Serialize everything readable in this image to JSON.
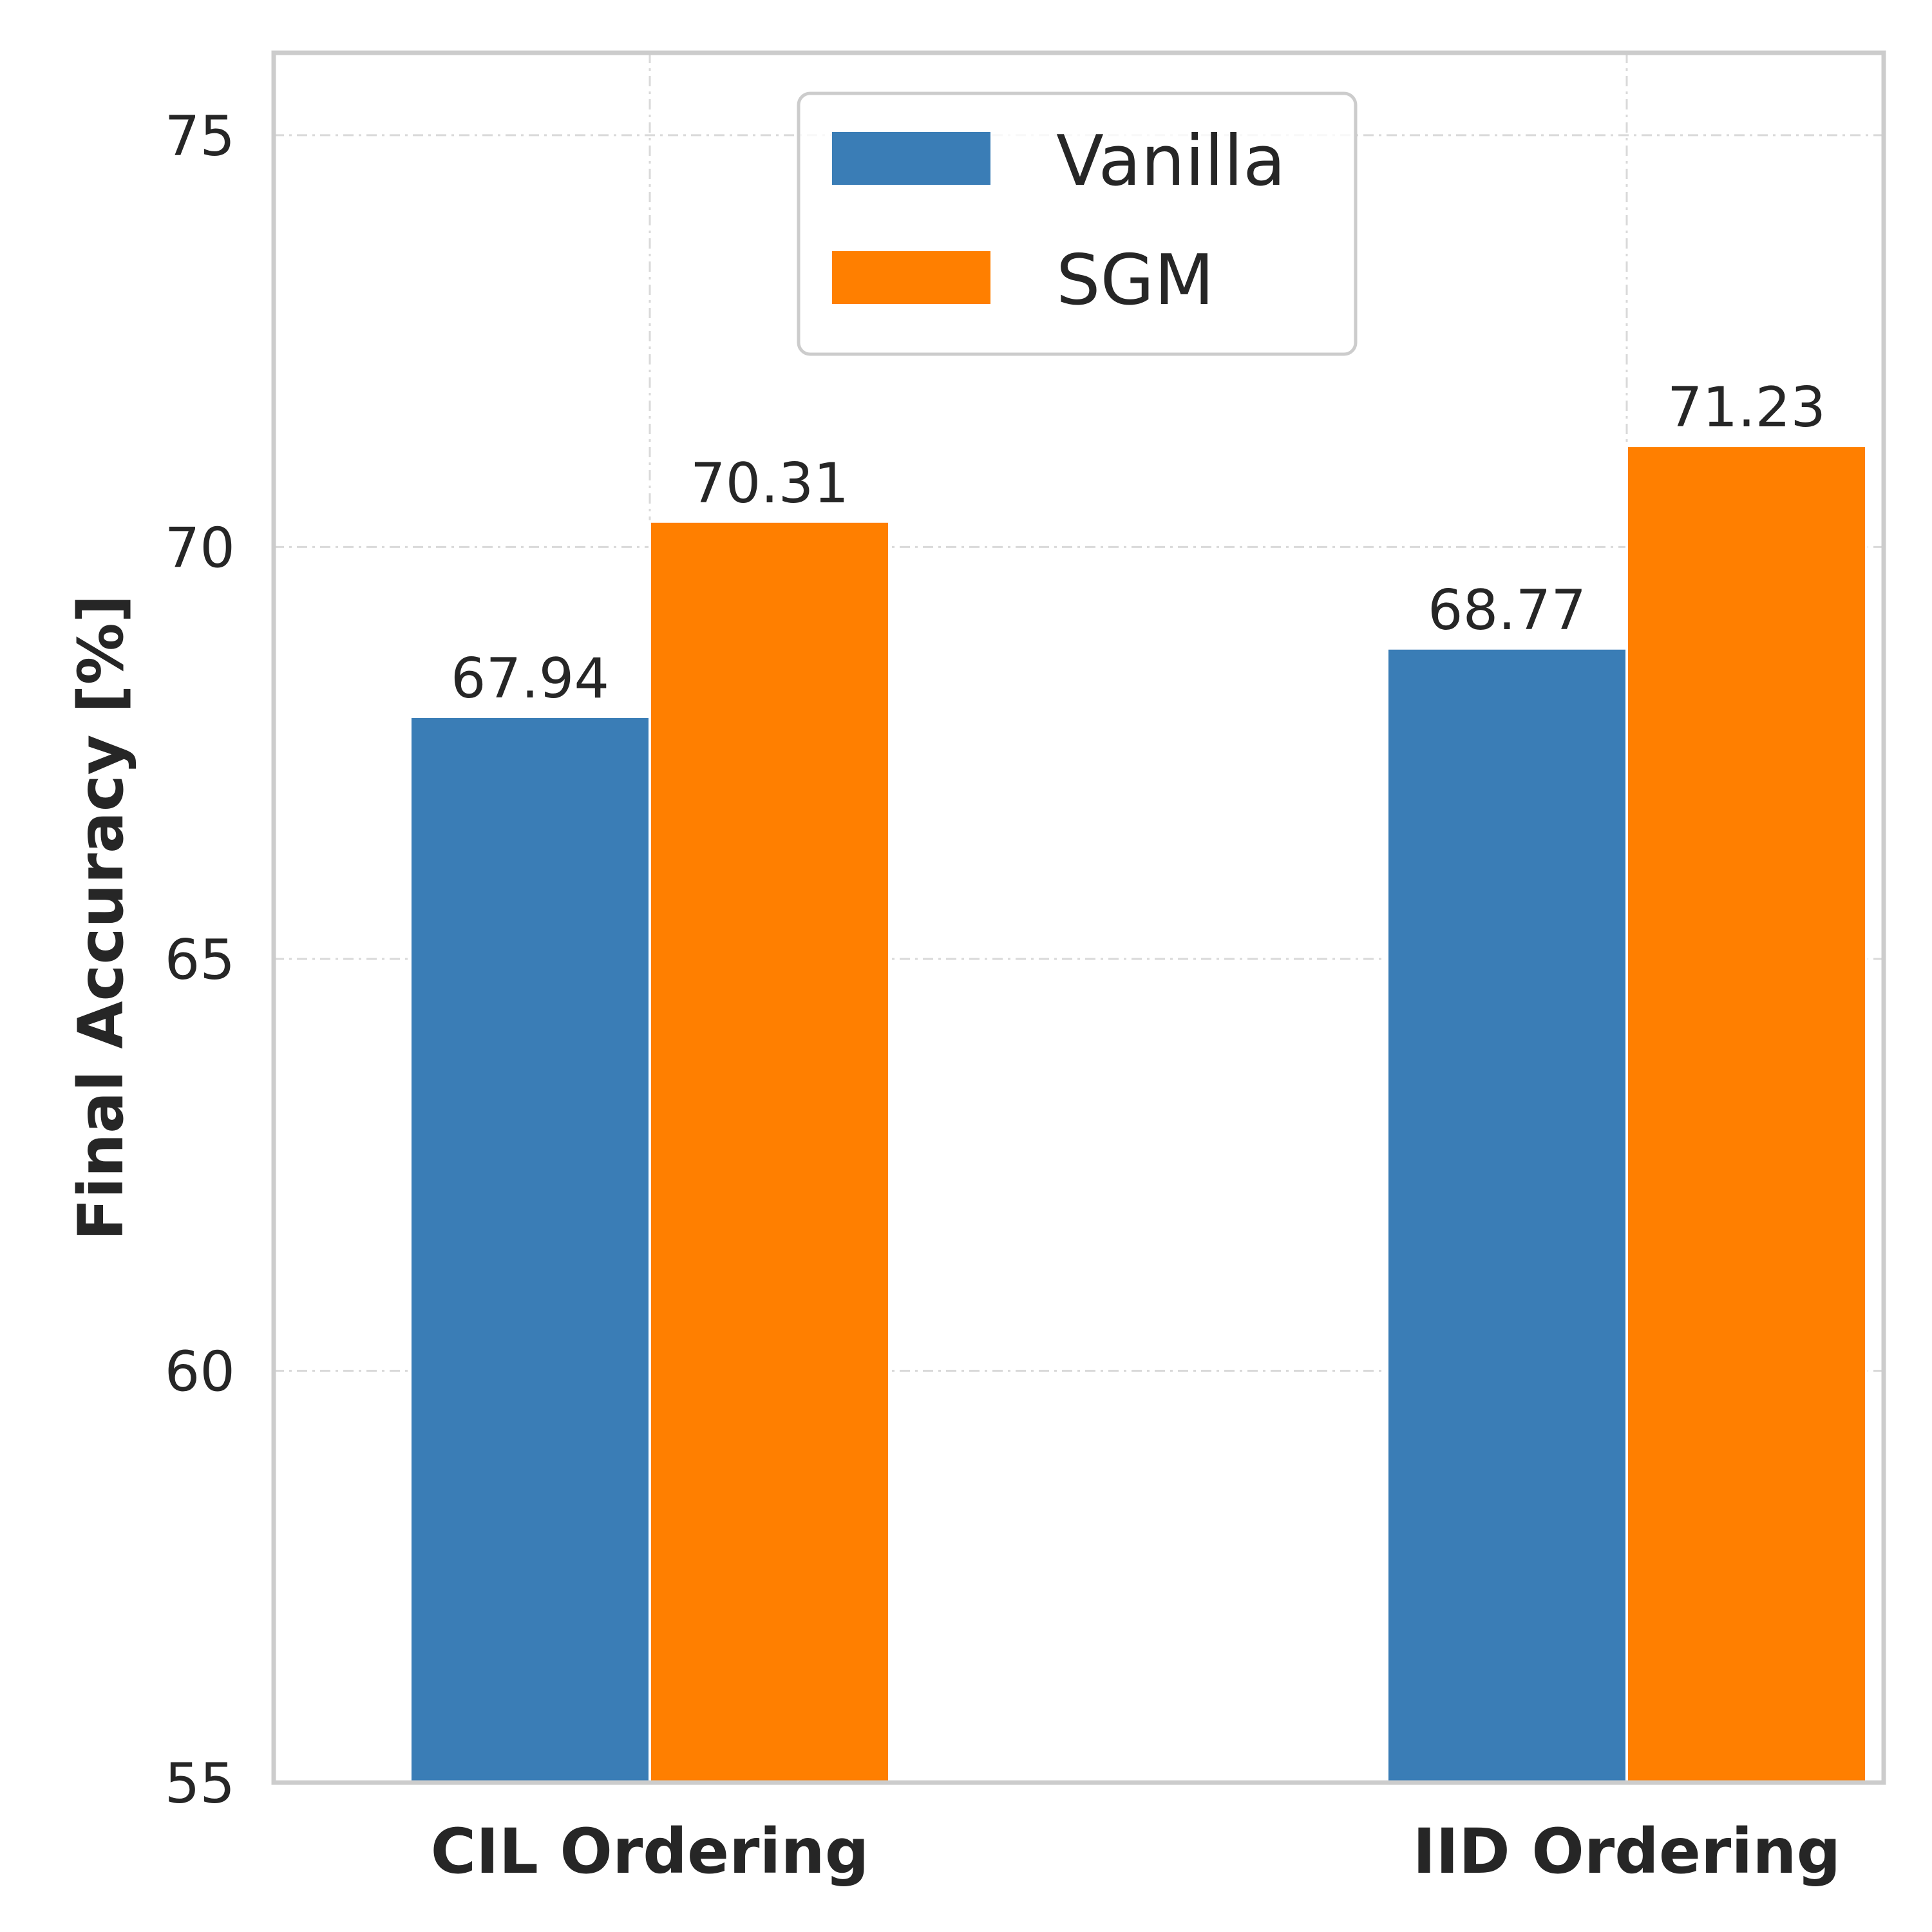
{
  "chart_data": {
    "type": "bar",
    "categories": [
      "CIL Ordering",
      "IID Ordering"
    ],
    "series": [
      {
        "name": "Vanilla",
        "values": [
          67.94,
          68.77
        ],
        "color": "#3a7db6"
      },
      {
        "name": "SGM",
        "values": [
          70.31,
          71.23
        ],
        "color": "#ff7f00"
      }
    ],
    "value_labels": [
      [
        "67.94",
        "68.77"
      ],
      [
        "70.31",
        "71.23"
      ]
    ],
    "title": "",
    "xlabel": "",
    "ylabel": "Final Accuracy [%]",
    "ylim": [
      55,
      76
    ],
    "yticks": [
      55,
      60,
      65,
      70,
      75
    ],
    "ytick_labels": [
      "55",
      "60",
      "65",
      "70",
      "75"
    ],
    "grid": true,
    "legend_position": "top-center"
  }
}
